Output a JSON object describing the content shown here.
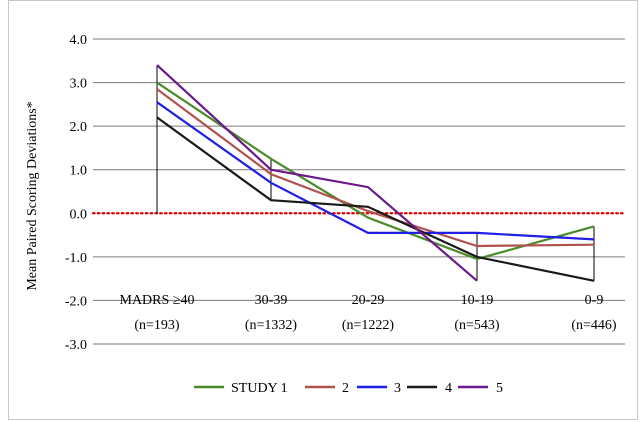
{
  "chart_data": {
    "type": "line",
    "ylabel": "Mean Paired Scoring Deviations*",
    "ylim": [
      -3.0,
      4.0
    ],
    "yticks": [
      "4.0",
      "3.0",
      "2.0",
      "1.0",
      "0.0",
      "-1.0",
      "-2.0",
      "-3.0"
    ],
    "categories": [
      [
        "MADRS ≥40",
        "(n=193)"
      ],
      [
        "30-39",
        "(n=1332)"
      ],
      [
        "20-29",
        "(n=1222)"
      ],
      [
        "10-19",
        "(n=543)"
      ],
      [
        "0-9",
        "(n=446)"
      ]
    ],
    "grid": true,
    "legend_position": "bottom",
    "reference_line": {
      "y": 0.0,
      "style": "dotted",
      "color": "#dd0000"
    },
    "series": [
      {
        "name": "STUDY 1",
        "color": "#4a8c2a",
        "values": [
          3.0,
          1.25,
          -0.1,
          -1.05,
          -0.3
        ]
      },
      {
        "name": "2",
        "color": "#b0524e",
        "values": [
          2.85,
          0.9,
          0.05,
          -0.75,
          -0.72
        ]
      },
      {
        "name": "3",
        "color": "#1f1fe6",
        "values": [
          2.55,
          0.7,
          -0.45,
          -0.45,
          -0.6
        ]
      },
      {
        "name": "4",
        "color": "#1a1a1a",
        "values": [
          2.2,
          0.3,
          0.15,
          -1.0,
          -1.55
        ]
      },
      {
        "name": "5",
        "color": "#6a1a8a",
        "values": [
          3.4,
          1.0,
          0.6,
          -1.55,
          null
        ]
      }
    ],
    "drop_lines": [
      0,
      1,
      3,
      4
    ]
  }
}
